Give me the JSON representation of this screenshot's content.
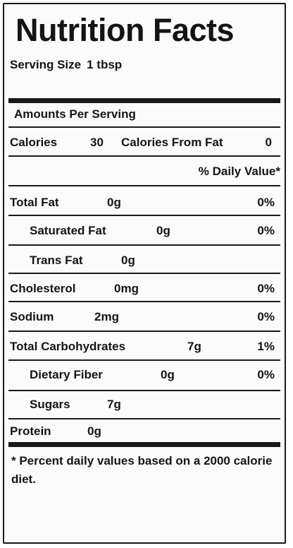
{
  "label": {
    "title": "Nutrition Facts",
    "serving_size_label": "Serving Size",
    "serving_size_value": "1 tbsp",
    "amounts_per_serving": "Amounts Per Serving",
    "calories_label": "Calories",
    "calories_value": "30",
    "calories_from_fat_label": "Calories From Fat",
    "calories_from_fat_value": "0",
    "daily_value_header": "% Daily Value*",
    "nutrients": {
      "total_fat": {
        "name": "Total Fat",
        "amount": "0g",
        "dv": "0%"
      },
      "saturated_fat": {
        "name": "Saturated Fat",
        "amount": "0g",
        "dv": "0%"
      },
      "trans_fat": {
        "name": "Trans Fat",
        "amount": "0g"
      },
      "cholesterol": {
        "name": "Cholesterol",
        "amount": "0mg",
        "dv": "0%"
      },
      "sodium": {
        "name": "Sodium",
        "amount": "2mg",
        "dv": "0%"
      },
      "total_carbohydrates": {
        "name": "Total Carbohydrates",
        "amount": "7g",
        "dv": "1%"
      },
      "dietary_fiber": {
        "name": "Dietary Fiber",
        "amount": "0g",
        "dv": "0%"
      },
      "sugars": {
        "name": "Sugars",
        "amount": "7g"
      },
      "protein": {
        "name": "Protein",
        "amount": "0g"
      }
    },
    "footnote": "* Percent daily values based on a 2000 calorie diet."
  }
}
